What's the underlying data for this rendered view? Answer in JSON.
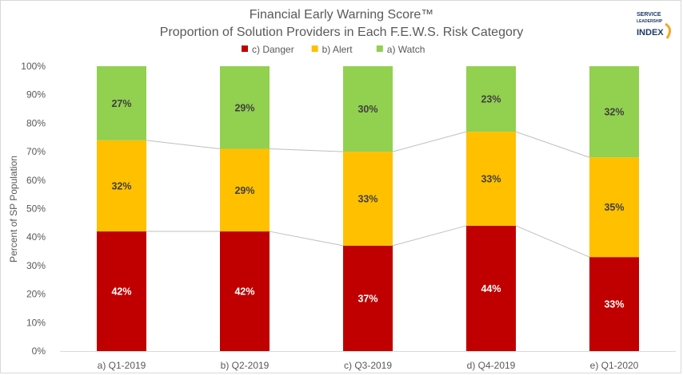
{
  "chart_data": {
    "type": "bar",
    "stacked": true,
    "title": "Financial Early Warning Score™",
    "subtitle": "Proportion of Solution Providers in Each F.E.W.S. Risk Category",
    "ylabel": "Percent of SP Population",
    "xlabel": "",
    "ylim": [
      0,
      100
    ],
    "yticks": [
      "0%",
      "10%",
      "20%",
      "30%",
      "40%",
      "50%",
      "60%",
      "70%",
      "80%",
      "90%",
      "100%"
    ],
    "grid": false,
    "legend_position": "top",
    "series_lines": true,
    "categories": [
      "a) Q1-2019",
      "b) Q2-2019",
      "c) Q3-2019",
      "d) Q4-2019",
      "e) Q1-2020"
    ],
    "series": [
      {
        "name": "c) Danger",
        "color": "#c00000",
        "label_color": "#ffffff",
        "values": [
          42,
          42,
          37,
          44,
          33
        ],
        "labels": [
          "42%",
          "42%",
          "37%",
          "44%",
          "33%"
        ]
      },
      {
        "name": "b) Alert",
        "color": "#ffc000",
        "label_color": "#404040",
        "values": [
          32,
          29,
          33,
          33,
          35
        ],
        "labels": [
          "32%",
          "29%",
          "33%",
          "33%",
          "35%"
        ]
      },
      {
        "name": "a) Watch",
        "color": "#92d050",
        "label_color": "#404040",
        "values": [
          27,
          29,
          30,
          23,
          32
        ],
        "labels": [
          "27%",
          "29%",
          "30%",
          "23%",
          "32%"
        ]
      }
    ]
  },
  "logo": {
    "line1": "SERVICE",
    "line2": "LEADERSHIP",
    "line3": "INDEX",
    "accent_color": "#f5a623"
  }
}
